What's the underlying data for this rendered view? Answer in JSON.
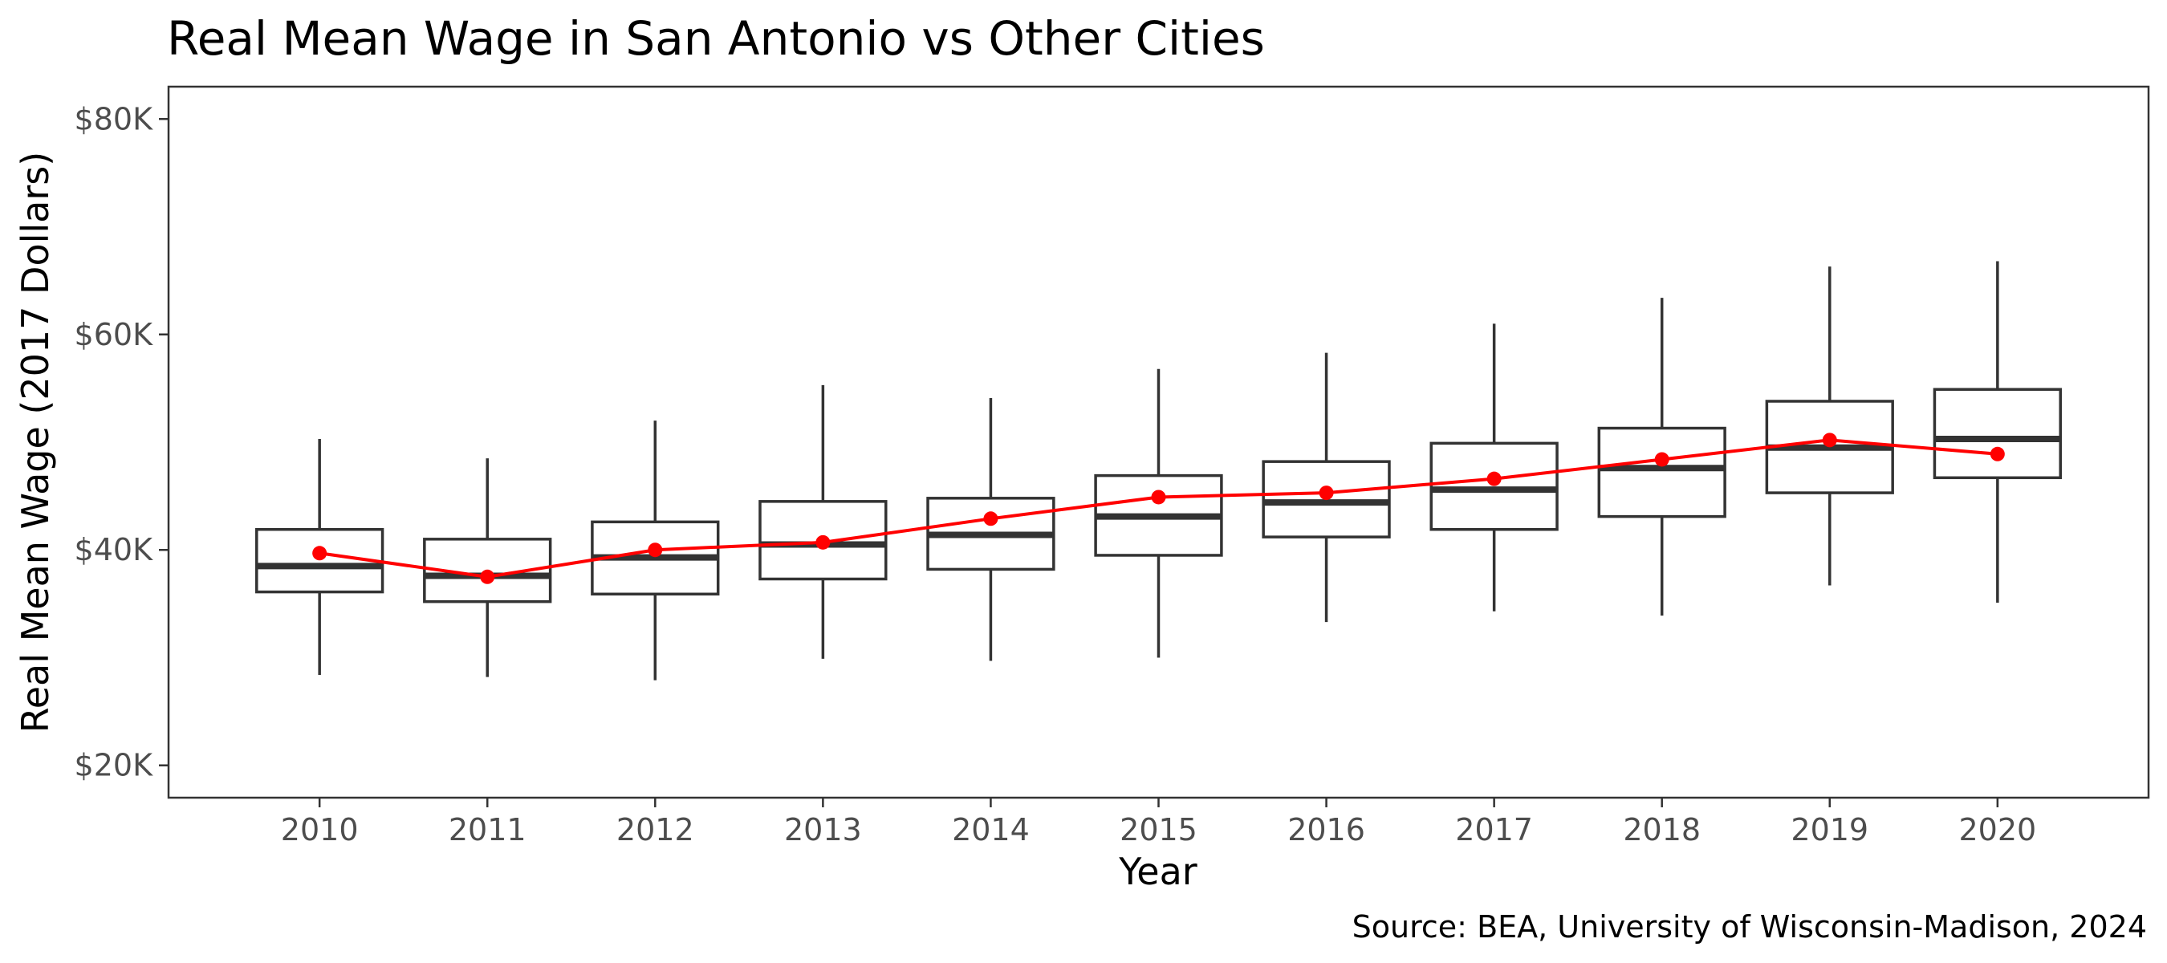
{
  "chart_data": {
    "type": "box",
    "title": "Real Mean Wage in San Antonio vs Other Cities",
    "xlabel": "Year",
    "ylabel": "Real Mean Wage (2017 Dollars)",
    "caption": "Source: BEA, University of Wisconsin-Madison, 2024",
    "ylim": [
      17000,
      83000
    ],
    "yticks": [
      20000,
      40000,
      60000,
      80000
    ],
    "ytick_labels": [
      "$20K",
      "$40K",
      "$60K",
      "$80K"
    ],
    "categories": [
      "2010",
      "2011",
      "2012",
      "2013",
      "2014",
      "2015",
      "2016",
      "2017",
      "2018",
      "2019",
      "2020"
    ],
    "boxes": [
      {
        "min": 28400,
        "q1": 36100,
        "median": 38500,
        "q3": 41900,
        "max": 50300
      },
      {
        "min": 28200,
        "q1": 35200,
        "median": 37600,
        "q3": 41000,
        "max": 48500
      },
      {
        "min": 27900,
        "q1": 35900,
        "median": 39300,
        "q3": 42600,
        "max": 52000
      },
      {
        "min": 29900,
        "q1": 37300,
        "median": 40500,
        "q3": 44500,
        "max": 55300
      },
      {
        "min": 29700,
        "q1": 38200,
        "median": 41400,
        "q3": 44800,
        "max": 54100
      },
      {
        "min": 30000,
        "q1": 39500,
        "median": 43100,
        "q3": 46900,
        "max": 56800
      },
      {
        "min": 33300,
        "q1": 41200,
        "median": 44400,
        "q3": 48200,
        "max": 58300
      },
      {
        "min": 34300,
        "q1": 41900,
        "median": 45600,
        "q3": 49900,
        "max": 61000
      },
      {
        "min": 33900,
        "q1": 43100,
        "median": 47600,
        "q3": 51300,
        "max": 63400
      },
      {
        "min": 36700,
        "q1": 45300,
        "median": 49500,
        "q3": 53800,
        "max": 66300
      },
      {
        "min": 35100,
        "q1": 46700,
        "median": 50300,
        "q3": 54900,
        "max": 66800
      }
    ],
    "series": [
      {
        "values": [
          39700,
          37500,
          40000,
          40700,
          42900,
          44900,
          45300,
          46600,
          48400,
          50200,
          48900
        ]
      }
    ],
    "colors": {
      "box": "#333333",
      "line": "#ff0000",
      "panel_border": "#333333",
      "tick_text": "#4d4d4d"
    },
    "grid": false,
    "legend": "none"
  }
}
